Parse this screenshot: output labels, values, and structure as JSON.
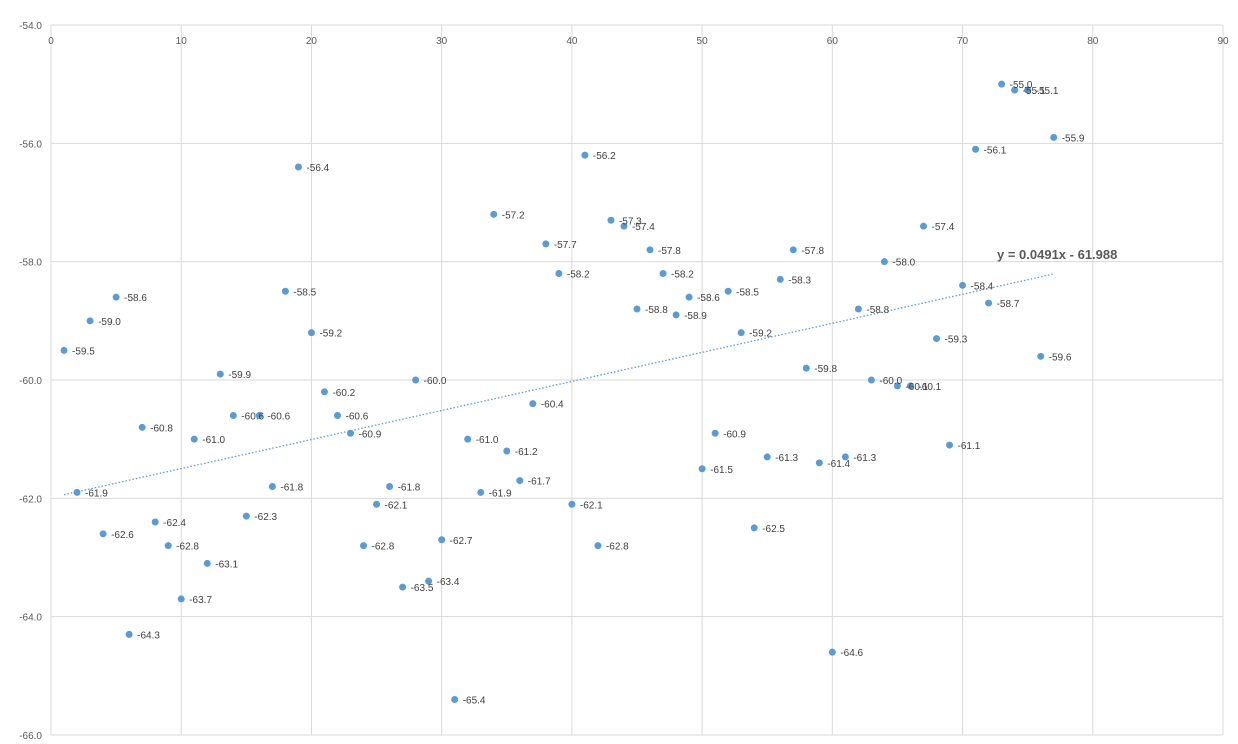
{
  "chart_data": {
    "type": "scatter",
    "title": "",
    "xlabel": "",
    "ylabel": "",
    "xlim": [
      0,
      90
    ],
    "ylim": [
      -66,
      -54
    ],
    "x_ticks": [
      "0",
      "10",
      "20",
      "30",
      "40",
      "50",
      "60",
      "70",
      "80",
      "90"
    ],
    "y_ticks": [
      "-54.0",
      "-56.0",
      "-58.0",
      "-60.0",
      "-62.0",
      "-64.0",
      "-66.0"
    ],
    "x_tick_values": [
      0,
      10,
      20,
      30,
      40,
      50,
      60,
      70,
      80,
      90
    ],
    "y_tick_values": [
      -54,
      -56,
      -58,
      -60,
      -62,
      -64,
      -66
    ],
    "grid": true,
    "point_color": "#5b9bd5",
    "points": [
      {
        "x": 1,
        "y": -59.5,
        "label": "-59.5"
      },
      {
        "x": 2,
        "y": -61.9,
        "label": "-61.9"
      },
      {
        "x": 3,
        "y": -59.0,
        "label": "-59.0"
      },
      {
        "x": 4,
        "y": -62.6,
        "label": "-62.6"
      },
      {
        "x": 5,
        "y": -58.6,
        "label": "-58.6"
      },
      {
        "x": 6,
        "y": -64.3,
        "label": "-64.3"
      },
      {
        "x": 7,
        "y": -60.8,
        "label": "-60.8"
      },
      {
        "x": 8,
        "y": -62.4,
        "label": "-62.4"
      },
      {
        "x": 9,
        "y": -62.8,
        "label": "-62.8"
      },
      {
        "x": 10,
        "y": -63.7,
        "label": "-63.7"
      },
      {
        "x": 11,
        "y": -61.0,
        "label": "-61.0"
      },
      {
        "x": 12,
        "y": -63.1,
        "label": "-63.1"
      },
      {
        "x": 13,
        "y": -59.9,
        "label": "-59.9"
      },
      {
        "x": 14,
        "y": -60.6,
        "label": "-60.6"
      },
      {
        "x": 15,
        "y": -62.3,
        "label": "-62.3"
      },
      {
        "x": 16,
        "y": -60.6,
        "label": "-60.6"
      },
      {
        "x": 17,
        "y": -61.8,
        "label": "-61.8"
      },
      {
        "x": 18,
        "y": -58.5,
        "label": "-58.5"
      },
      {
        "x": 19,
        "y": -56.4,
        "label": "-56.4"
      },
      {
        "x": 20,
        "y": -59.2,
        "label": "-59.2"
      },
      {
        "x": 21,
        "y": -60.2,
        "label": "-60.2"
      },
      {
        "x": 22,
        "y": -60.6,
        "label": "-60.6"
      },
      {
        "x": 23,
        "y": -60.9,
        "label": "-60.9"
      },
      {
        "x": 24,
        "y": -62.8,
        "label": "-62.8"
      },
      {
        "x": 25,
        "y": -62.1,
        "label": "-62.1"
      },
      {
        "x": 26,
        "y": -61.8,
        "label": "-61.8"
      },
      {
        "x": 27,
        "y": -63.5,
        "label": "-63.5"
      },
      {
        "x": 28,
        "y": -60.0,
        "label": "-60.0"
      },
      {
        "x": 29,
        "y": -63.4,
        "label": "-63.4"
      },
      {
        "x": 30,
        "y": -62.7,
        "label": "-62.7"
      },
      {
        "x": 31,
        "y": -65.4,
        "label": "-65.4"
      },
      {
        "x": 32,
        "y": -61.0,
        "label": "-61.0"
      },
      {
        "x": 33,
        "y": -61.9,
        "label": "-61.9"
      },
      {
        "x": 34,
        "y": -57.2,
        "label": "-57.2"
      },
      {
        "x": 35,
        "y": -61.2,
        "label": "-61.2"
      },
      {
        "x": 36,
        "y": -61.7,
        "label": "-61.7"
      },
      {
        "x": 37,
        "y": -60.4,
        "label": "-60.4"
      },
      {
        "x": 38,
        "y": -57.7,
        "label": "-57.7"
      },
      {
        "x": 39,
        "y": -58.2,
        "label": "-58.2"
      },
      {
        "x": 40,
        "y": -62.1,
        "label": "-62.1"
      },
      {
        "x": 41,
        "y": -56.2,
        "label": "-56.2"
      },
      {
        "x": 42,
        "y": -62.8,
        "label": "-62.8"
      },
      {
        "x": 43,
        "y": -57.3,
        "label": "-57.3"
      },
      {
        "x": 44,
        "y": -57.4,
        "label": "-57.4"
      },
      {
        "x": 45,
        "y": -58.8,
        "label": "-58.8"
      },
      {
        "x": 46,
        "y": -57.8,
        "label": "-57.8"
      },
      {
        "x": 47,
        "y": -58.2,
        "label": "-58.2"
      },
      {
        "x": 48,
        "y": -58.9,
        "label": "-58.9"
      },
      {
        "x": 49,
        "y": -58.6,
        "label": "-58.6"
      },
      {
        "x": 50,
        "y": -61.5,
        "label": "-61.5"
      },
      {
        "x": 51,
        "y": -60.9,
        "label": "-60.9"
      },
      {
        "x": 52,
        "y": -58.5,
        "label": "-58.5"
      },
      {
        "x": 53,
        "y": -59.2,
        "label": "-59.2"
      },
      {
        "x": 54,
        "y": -62.5,
        "label": "-62.5"
      },
      {
        "x": 55,
        "y": -61.3,
        "label": "-61.3"
      },
      {
        "x": 56,
        "y": -58.3,
        "label": "-58.3"
      },
      {
        "x": 57,
        "y": -57.8,
        "label": "-57.8"
      },
      {
        "x": 58,
        "y": -59.8,
        "label": "-59.8"
      },
      {
        "x": 59,
        "y": -61.4,
        "label": "-61.4"
      },
      {
        "x": 60,
        "y": -64.6,
        "label": "-64.6"
      },
      {
        "x": 61,
        "y": -61.3,
        "label": "-61.3"
      },
      {
        "x": 62,
        "y": -58.8,
        "label": "-58.8"
      },
      {
        "x": 63,
        "y": -60.0,
        "label": "-60.0"
      },
      {
        "x": 64,
        "y": -58.0,
        "label": "-58.0"
      },
      {
        "x": 65,
        "y": -60.1,
        "label": "-60.1"
      },
      {
        "x": 66,
        "y": -60.1,
        "label": "-60.1"
      },
      {
        "x": 67,
        "y": -57.4,
        "label": "-57.4"
      },
      {
        "x": 68,
        "y": -59.3,
        "label": "-59.3"
      },
      {
        "x": 69,
        "y": -61.1,
        "label": "-61.1"
      },
      {
        "x": 70,
        "y": -58.4,
        "label": "-58.4"
      },
      {
        "x": 71,
        "y": -56.1,
        "label": "-56.1"
      },
      {
        "x": 72,
        "y": -58.7,
        "label": "-58.7"
      },
      {
        "x": 73,
        "y": -55.0,
        "label": "-55.0"
      },
      {
        "x": 74,
        "y": -55.1,
        "label": "-55.1"
      },
      {
        "x": 75,
        "y": -55.1,
        "label": "-55.1"
      },
      {
        "x": 76,
        "y": -59.6,
        "label": "-59.6"
      },
      {
        "x": 77,
        "y": -55.9,
        "label": "-55.9"
      }
    ],
    "trendline": {
      "type": "linear",
      "slope": 0.0491,
      "intercept": -61.988,
      "x_range": [
        1,
        77
      ],
      "equation_label": "y = 0.0491x - 61.988",
      "style": "dotted"
    }
  }
}
